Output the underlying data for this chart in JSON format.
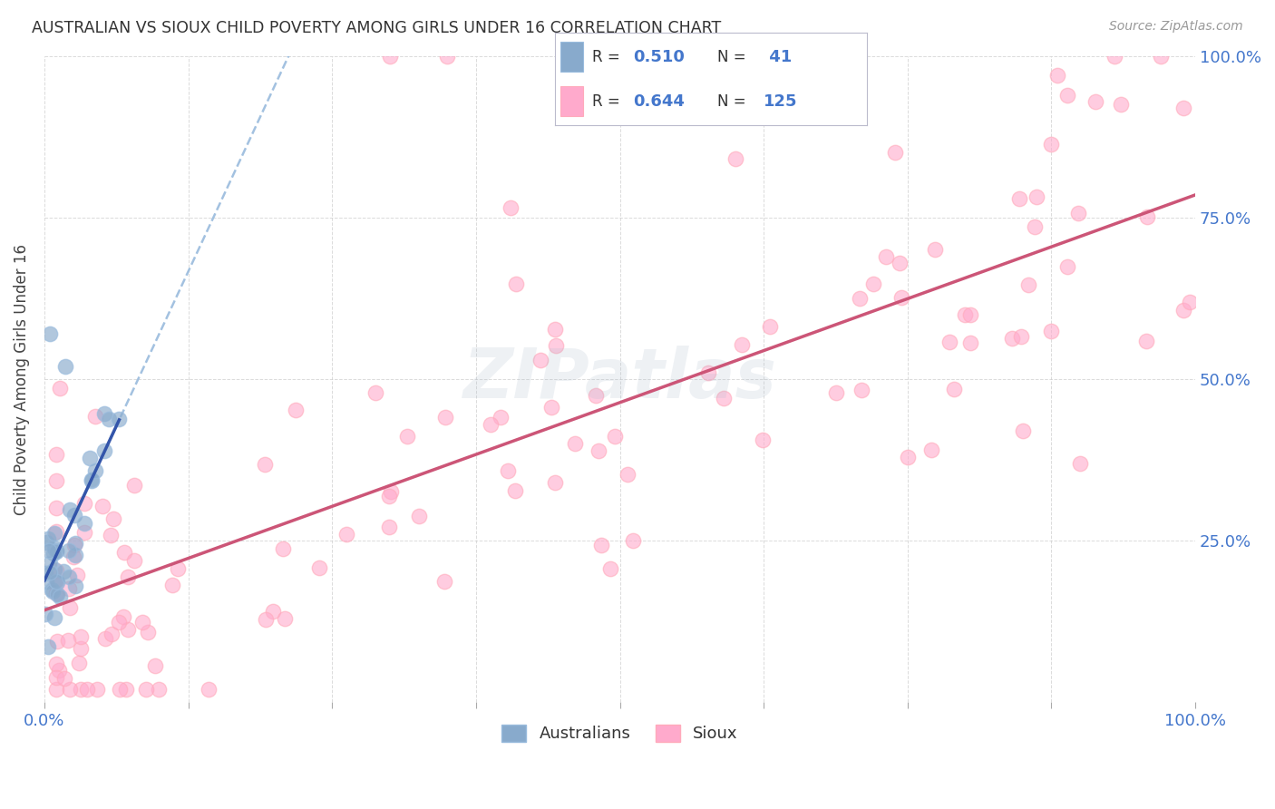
{
  "title": "AUSTRALIAN VS SIOUX CHILD POVERTY AMONG GIRLS UNDER 16 CORRELATION CHART",
  "source": "Source: ZipAtlas.com",
  "ylabel": "Child Poverty Among Girls Under 16",
  "xlim": [
    0.0,
    1.0
  ],
  "ylim": [
    0.0,
    1.0
  ],
  "blue_color": "#99BBDD",
  "blue_fill": "#AACCEE",
  "pink_color": "#FFAABB",
  "pink_fill": "#FFBBCC",
  "blue_line_color": "#3355AA",
  "pink_line_color": "#CC5577",
  "blue_dashed_color": "#99BBDD",
  "watermark": "ZIPatlas",
  "background_color": "#FFFFFF",
  "grid_color": "#CCCCCC",
  "axis_label_color": "#4477CC",
  "title_color": "#333333",
  "legend_box_color": "#DDDDEE",
  "aus_marker_color": "#88AACC",
  "sioux_marker_color": "#FFAACC"
}
